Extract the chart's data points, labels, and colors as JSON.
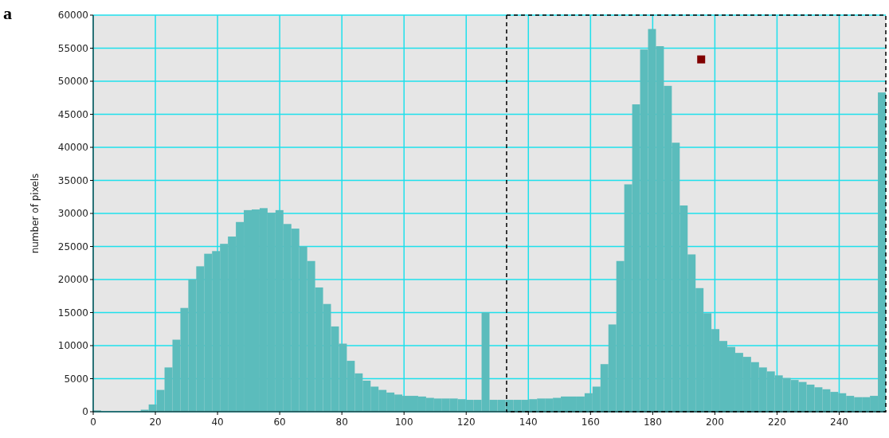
{
  "chart_data": {
    "type": "histogram",
    "ylabel": "number of pixels",
    "annotations": [
      "a"
    ],
    "xlim": [
      0,
      255
    ],
    "xticks": [
      0,
      20,
      40,
      60,
      80,
      100,
      120,
      140,
      160,
      180,
      200,
      220,
      240
    ],
    "ylim": [
      0,
      60000
    ],
    "yticks": [
      0,
      5000,
      10000,
      15000,
      20000,
      25000,
      30000,
      35000,
      40000,
      45000,
      50000,
      55000,
      60000
    ],
    "grid": true,
    "ref_lines": [
      {
        "axis": "x",
        "value": 133,
        "color": "#000000",
        "line_style": "dashed"
      }
    ],
    "series": [
      {
        "color": "#5bbcbc",
        "bins": [
          0,
          2.55,
          5.1,
          7.65,
          10.2,
          12.75,
          15.3,
          17.85,
          20.4,
          22.95,
          25.5,
          28.05,
          30.6,
          33.15,
          35.7,
          38.25,
          40.8,
          43.35,
          45.9,
          48.45,
          51,
          53.55,
          56.1,
          58.65,
          61.2,
          63.75,
          66.3,
          68.85,
          71.4,
          73.95,
          76.5,
          79.05,
          81.6,
          84.15,
          86.7,
          89.25,
          91.8,
          94.35,
          96.9,
          99.45,
          102,
          104.55,
          107.1,
          109.65,
          112.2,
          114.75,
          117.3,
          119.85,
          122.4,
          124.95,
          127.5,
          130.05,
          132.6,
          135.15,
          137.7,
          140.25,
          142.8,
          145.35,
          147.9,
          150.45,
          153,
          155.55,
          158.1,
          160.65,
          163.2,
          165.75,
          168.3,
          170.85,
          173.4,
          175.95,
          178.5,
          181.05,
          183.6,
          186.15,
          188.7,
          191.25,
          193.8,
          196.35,
          198.9,
          201.45,
          204,
          206.55,
          209.1,
          211.65,
          214.2,
          216.75,
          219.3,
          221.85,
          224.4,
          226.95,
          229.5,
          232.05,
          234.6,
          237.15,
          239.7,
          242.25,
          244.8,
          247.35,
          249.9,
          252.45,
          255
        ],
        "values": [
          200,
          0,
          0,
          0,
          0,
          0,
          300,
          1100,
          3300,
          6700,
          10900,
          15700,
          20000,
          22000,
          23900,
          24300,
          25400,
          26500,
          28700,
          30500,
          30600,
          30800,
          30100,
          30500,
          28400,
          27700,
          25000,
          22800,
          18800,
          16300,
          12900,
          10300,
          7700,
          5800,
          4700,
          3800,
          3300,
          2900,
          2600,
          2400,
          2400,
          2300,
          2100,
          2000,
          2000,
          2000,
          1900,
          1800,
          1800,
          15000,
          1800,
          1800,
          1800,
          1800,
          1800,
          1900,
          2000,
          2000,
          2100,
          2300,
          2300,
          2300,
          2800,
          3800,
          7200,
          13200,
          22800,
          34400,
          46500,
          54800,
          57900,
          55300,
          49300,
          40700,
          31200,
          23800,
          18700,
          14900,
          12500,
          10700,
          9800,
          8900,
          8300,
          7500,
          6700,
          6100,
          5500,
          5100,
          4800,
          4500,
          4100,
          3700,
          3400,
          3000,
          2800,
          2400,
          2200,
          2200,
          2400,
          48300
        ]
      },
      {
        "type": "scatter",
        "color": "#800000",
        "marker": "square",
        "x": [
          195.6
        ],
        "values": [
          53300
        ]
      }
    ]
  }
}
